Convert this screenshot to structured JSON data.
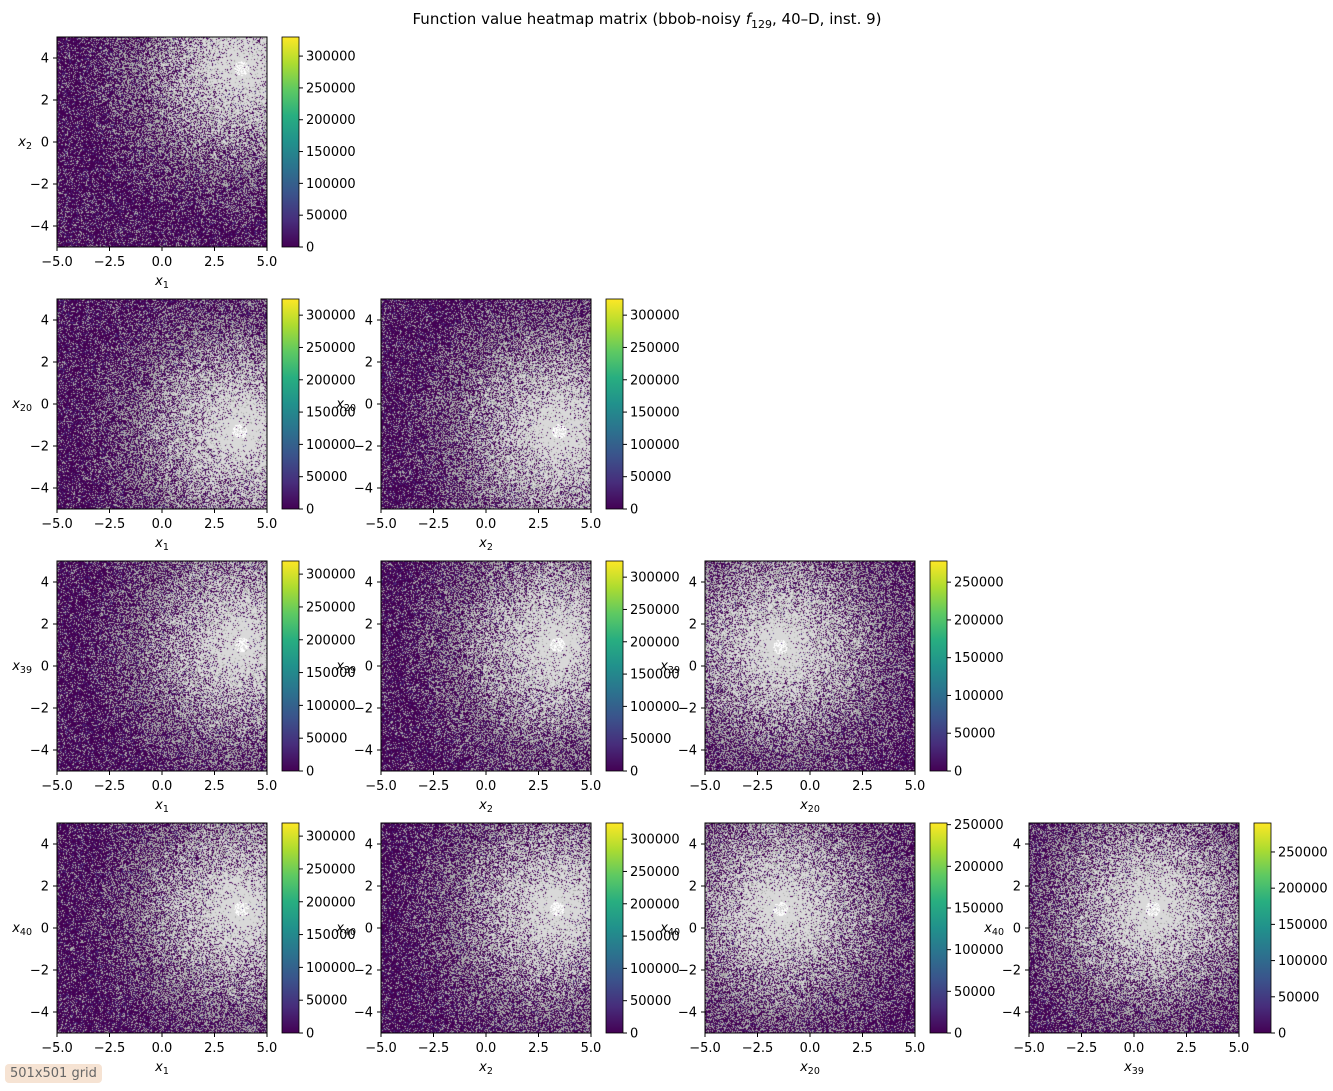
{
  "chart_data": {
    "type": "heatmap",
    "title": "Function value heatmap matrix (bbob-noisy f129, 40–D, inst. 9)",
    "title_parts": {
      "before": "Function value heatmap matrix (bbob-noisy ",
      "f": "f",
      "sub": "129",
      "after": ", 40–D, inst. 9)"
    },
    "colormap": "viridis",
    "background_color": "#d9d9d9",
    "axis_range": [
      -5,
      5
    ],
    "x_ticks": [
      "−5.0",
      "−2.5",
      "0.0",
      "2.5",
      "5.0"
    ],
    "y_ticks": [
      "−4",
      "−2",
      "0",
      "2",
      "4"
    ],
    "panels": [
      {
        "row": 0,
        "col": 0,
        "xvar": "1",
        "yvar": "2",
        "min_xy": [
          3.8,
          3.5
        ],
        "cmax": 330000,
        "cbar_ticks": [
          "0",
          "50000",
          "100000",
          "150000",
          "200000",
          "250000",
          "300000"
        ],
        "cbar_values": [
          0,
          50000,
          100000,
          150000,
          200000,
          250000,
          300000
        ]
      },
      {
        "row": 1,
        "col": 0,
        "xvar": "1",
        "yvar": "20",
        "min_xy": [
          3.7,
          -1.3
        ],
        "cmax": 325000,
        "cbar_ticks": [
          "0",
          "50000",
          "100000",
          "150000",
          "200000",
          "250000",
          "300000"
        ],
        "cbar_values": [
          0,
          50000,
          100000,
          150000,
          200000,
          250000,
          300000
        ]
      },
      {
        "row": 1,
        "col": 1,
        "xvar": "2",
        "yvar": "20",
        "min_xy": [
          3.5,
          -1.3
        ],
        "cmax": 325000,
        "cbar_ticks": [
          "0",
          "50000",
          "100000",
          "150000",
          "200000",
          "250000",
          "300000"
        ],
        "cbar_values": [
          0,
          50000,
          100000,
          150000,
          200000,
          250000,
          300000
        ]
      },
      {
        "row": 2,
        "col": 0,
        "xvar": "1",
        "yvar": "39",
        "min_xy": [
          3.8,
          1.0
        ],
        "cmax": 320000,
        "cbar_ticks": [
          "0",
          "50000",
          "100000",
          "150000",
          "200000",
          "250000",
          "300000"
        ],
        "cbar_values": [
          0,
          50000,
          100000,
          150000,
          200000,
          250000,
          300000
        ]
      },
      {
        "row": 2,
        "col": 1,
        "xvar": "2",
        "yvar": "39",
        "min_xy": [
          3.4,
          1.0
        ],
        "cmax": 325000,
        "cbar_ticks": [
          "0",
          "50000",
          "100000",
          "150000",
          "200000",
          "250000",
          "300000"
        ],
        "cbar_values": [
          0,
          50000,
          100000,
          150000,
          200000,
          250000,
          300000
        ]
      },
      {
        "row": 2,
        "col": 2,
        "xvar": "20",
        "yvar": "39",
        "min_xy": [
          -1.4,
          0.9
        ],
        "cmax": 278000,
        "cbar_ticks": [
          "0",
          "50000",
          "100000",
          "150000",
          "200000",
          "250000"
        ],
        "cbar_values": [
          0,
          50000,
          100000,
          150000,
          200000,
          250000
        ]
      },
      {
        "row": 3,
        "col": 0,
        "xvar": "1",
        "yvar": "40",
        "min_xy": [
          3.8,
          0.9
        ],
        "cmax": 320000,
        "cbar_ticks": [
          "0",
          "50000",
          "100000",
          "150000",
          "200000",
          "250000",
          "300000"
        ],
        "cbar_values": [
          0,
          50000,
          100000,
          150000,
          200000,
          250000,
          300000
        ]
      },
      {
        "row": 3,
        "col": 1,
        "xvar": "2",
        "yvar": "40",
        "min_xy": [
          3.4,
          0.9
        ],
        "cmax": 325000,
        "cbar_ticks": [
          "0",
          "50000",
          "100000",
          "150000",
          "200000",
          "250000",
          "300000"
        ],
        "cbar_values": [
          0,
          50000,
          100000,
          150000,
          200000,
          250000,
          300000
        ]
      },
      {
        "row": 3,
        "col": 2,
        "xvar": "20",
        "yvar": "40",
        "min_xy": [
          -1.4,
          0.9
        ],
        "cmax": 252000,
        "cbar_ticks": [
          "0",
          "50000",
          "100000",
          "150000",
          "200000",
          "250000"
        ],
        "cbar_values": [
          0,
          50000,
          100000,
          150000,
          200000,
          250000
        ]
      },
      {
        "row": 3,
        "col": 3,
        "xvar": "39",
        "yvar": "40",
        "min_xy": [
          0.9,
          0.9
        ],
        "cmax": 290000,
        "cbar_ticks": [
          "0",
          "50000",
          "100000",
          "150000",
          "200000",
          "250000"
        ],
        "cbar_values": [
          0,
          50000,
          100000,
          150000,
          200000,
          250000
        ]
      }
    ]
  },
  "grid_note": "501x501 grid"
}
